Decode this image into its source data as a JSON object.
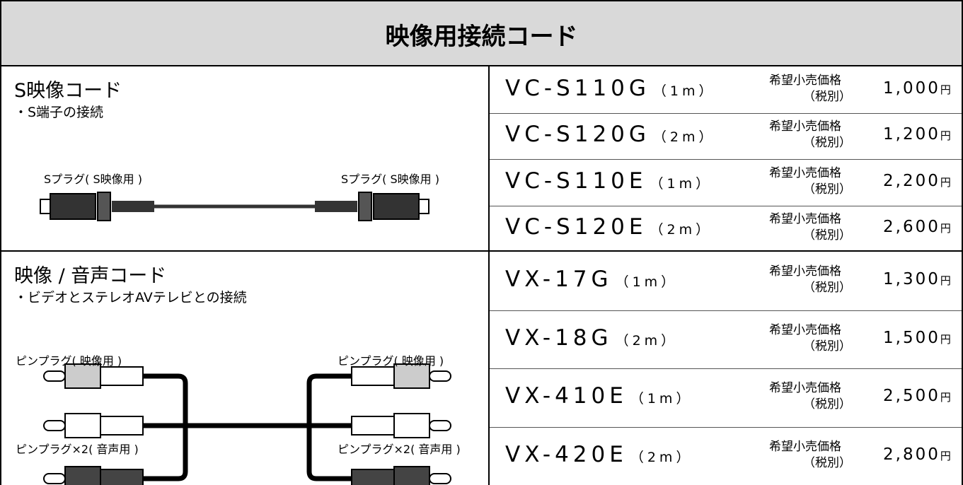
{
  "title": "映像用接続コード",
  "sections": [
    {
      "name": "S映像コード",
      "description": "・S端子の接続",
      "plug_labels": [
        "Sプラグ( S映像用 )",
        "Sプラグ( S映像用 )"
      ],
      "products": [
        {
          "model": "VC-S110G",
          "length": "（1m）",
          "price_label": "希望小売価格",
          "tax_note": "（税別）",
          "price": "1,000",
          "unit": "円"
        },
        {
          "model": "VC-S120G",
          "length": "（2m）",
          "price_label": "希望小売価格",
          "tax_note": "（税別）",
          "price": "1,200",
          "unit": "円"
        },
        {
          "model": "VC-S110E",
          "length": "（1m）",
          "price_label": "希望小売価格",
          "tax_note": "（税別）",
          "price": "2,200",
          "unit": "円"
        },
        {
          "model": "VC-S120E",
          "length": "（2m）",
          "price_label": "希望小売価格",
          "tax_note": "（税別）",
          "price": "2,600",
          "unit": "円"
        }
      ]
    },
    {
      "name": "映像 / 音声コード",
      "description": "・ビデオとステレオAVテレビとの接続",
      "plug_labels": [
        "ピンプラグ( 映像用 )",
        "ピンプラグ( 映像用 )",
        "ピンプラグ×2( 音声用 )",
        "ピンプラグ×2( 音声用 )"
      ],
      "products": [
        {
          "model": "VX-17G",
          "length": "（1m）",
          "price_label": "希望小売価格",
          "tax_note": "（税別）",
          "price": "1,300",
          "unit": "円"
        },
        {
          "model": "VX-18G",
          "length": "（2m）",
          "price_label": "希望小売価格",
          "tax_note": "（税別）",
          "price": "1,500",
          "unit": "円"
        },
        {
          "model": "VX-410E",
          "length": "（1m）",
          "price_label": "希望小売価格",
          "tax_note": "（税別）",
          "price": "2,500",
          "unit": "円"
        },
        {
          "model": "VX-420E",
          "length": "（2m）",
          "price_label": "希望小売価格",
          "tax_note": "（税別）",
          "price": "2,800",
          "unit": "円"
        }
      ]
    }
  ]
}
